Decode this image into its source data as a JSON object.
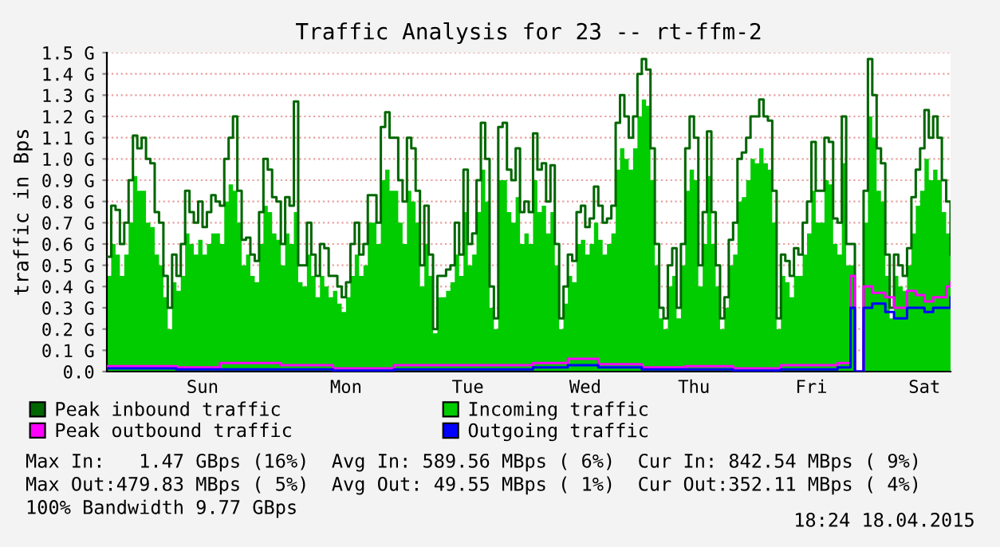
{
  "chart_data": {
    "type": "area",
    "title": "Traffic Analysis for 23 -- rt-ffm-2",
    "ylabel": "traffic in Bps",
    "categories": [
      null,
      null,
      null,
      null,
      null,
      null,
      null,
      null,
      null,
      null,
      null,
      null,
      null,
      null,
      null,
      null,
      null,
      null,
      null,
      null,
      null,
      null,
      "Sun",
      null,
      null,
      null,
      null,
      null,
      null,
      null,
      null,
      null,
      null,
      null,
      null,
      null,
      null,
      null,
      null,
      null,
      null,
      null,
      null,
      null,
      null,
      null,
      null,
      null,
      null,
      null,
      null,
      null,
      null,
      null,
      null,
      "Mon",
      null,
      null,
      null,
      null,
      null,
      null,
      null,
      null,
      null,
      null,
      null,
      null,
      null,
      null,
      null,
      null,
      null,
      null,
      null,
      null,
      null,
      null,
      null,
      null,
      null,
      null,
      null,
      "Tue",
      null,
      null,
      null,
      null,
      null,
      null,
      null,
      null,
      null,
      null,
      null,
      null,
      null,
      null,
      null,
      null,
      null,
      null,
      null,
      null,
      null,
      null,
      null,
      null,
      null,
      null,
      "Wed",
      null,
      null,
      null,
      null,
      null,
      null,
      null,
      null,
      null,
      null,
      null,
      null,
      null,
      null,
      null,
      null,
      null,
      null,
      null,
      null,
      null,
      null,
      null,
      null,
      "Thu",
      null,
      null,
      null,
      null,
      null,
      null,
      null,
      null,
      null,
      null,
      null,
      null,
      null,
      null,
      null,
      null,
      null,
      null,
      null,
      null,
      null,
      null,
      null,
      null,
      null,
      null,
      "Fri",
      null,
      null,
      null,
      null,
      null,
      null,
      null,
      null,
      null,
      null,
      null,
      null,
      null,
      null,
      null,
      null,
      null,
      null,
      null,
      null,
      null,
      null,
      null,
      null,
      null,
      "Sat",
      null,
      null,
      null,
      null,
      null,
      null
    ],
    "series": [
      {
        "name": "Peak inbound traffic",
        "type": "step",
        "color": "#006600",
        "values": [
          0.54,
          0.78,
          0.76,
          0.6,
          0.7,
          0.9,
          1.11,
          1.05,
          1.1,
          1.0,
          0.98,
          0.75,
          0.7,
          0.45,
          0.3,
          0.55,
          0.45,
          0.6,
          0.85,
          0.75,
          0.7,
          0.8,
          0.68,
          0.75,
          0.83,
          0.8,
          0.78,
          1.0,
          1.1,
          1.2,
          0.85,
          0.62,
          0.63,
          0.55,
          0.52,
          0.75,
          1.0,
          0.95,
          0.82,
          0.8,
          0.6,
          0.82,
          0.78,
          1.27,
          0.5,
          0.5,
          0.7,
          0.55,
          0.45,
          0.6,
          0.58,
          0.45,
          0.45,
          0.4,
          0.35,
          0.42,
          0.6,
          0.7,
          0.55,
          0.6,
          0.83,
          0.83,
          0.7,
          1.15,
          1.22,
          1.1,
          1.1,
          0.9,
          0.8,
          1.1,
          1.05,
          0.85,
          0.5,
          0.78,
          0.55,
          0.2,
          0.45,
          0.45,
          0.48,
          0.5,
          0.7,
          0.55,
          0.95,
          0.6,
          0.65,
          0.9,
          1.17,
          1.0,
          0.4,
          0.25,
          1.15,
          1.17,
          0.95,
          0.9,
          1.05,
          0.75,
          0.8,
          0.75,
          1.12,
          0.95,
          0.98,
          0.8,
          0.97,
          0.6,
          0.25,
          0.4,
          0.55,
          0.52,
          0.75,
          0.78,
          0.68,
          0.72,
          0.87,
          0.78,
          0.7,
          0.72,
          0.78,
          1.17,
          1.3,
          1.2,
          1.1,
          1.2,
          1.4,
          1.47,
          1.42,
          1.05,
          0.6,
          0.3,
          0.25,
          0.5,
          0.58,
          0.3,
          0.6,
          1.05,
          1.2,
          1.1,
          0.5,
          0.75,
          1.13,
          0.75,
          0.5,
          0.25,
          0.35,
          0.62,
          0.7,
          1.0,
          1.03,
          1.1,
          1.2,
          1.2,
          1.28,
          1.2,
          1.18,
          0.85,
          0.25,
          0.55,
          0.52,
          0.45,
          0.58,
          0.55,
          0.7,
          0.8,
          1.08,
          0.85,
          0.85,
          1.1,
          1.08,
          0.72,
          0.7,
          1.2,
          0.6,
          0.6,
          0.0,
          0.0,
          0.85,
          1.47,
          1.3,
          1.05,
          0.98,
          0.55,
          0.3,
          0.55,
          0.5,
          0.45,
          0.58,
          0.82,
          0.95,
          1.05,
          1.23,
          1.1,
          1.2,
          1.1,
          0.9,
          0.8,
          0.55
        ]
      },
      {
        "name": "Peak outbound traffic",
        "type": "step",
        "color": "#ff00ff",
        "values": [
          0.025,
          0.025,
          0.025,
          0.025,
          0.025,
          0.025,
          0.025,
          0.025,
          0.025,
          0.025,
          0.025,
          0.025,
          0.025,
          0.025,
          0.025,
          0.025,
          0.02,
          0.02,
          0.02,
          0.02,
          0.02,
          0.02,
          0.02,
          0.02,
          0.02,
          0.02,
          0.04,
          0.04,
          0.04,
          0.04,
          0.04,
          0.04,
          0.04,
          0.04,
          0.04,
          0.04,
          0.04,
          0.04,
          0.04,
          0.04,
          0.03,
          0.03,
          0.03,
          0.03,
          0.03,
          0.03,
          0.03,
          0.03,
          0.03,
          0.03,
          0.03,
          0.03,
          0.015,
          0.015,
          0.015,
          0.015,
          0.015,
          0.015,
          0.015,
          0.015,
          0.015,
          0.015,
          0.015,
          0.015,
          0.015,
          0.015,
          0.03,
          0.03,
          0.03,
          0.03,
          0.03,
          0.03,
          0.03,
          0.03,
          0.03,
          0.03,
          0.03,
          0.03,
          0.03,
          0.03,
          0.03,
          0.03,
          0.03,
          0.03,
          0.03,
          0.03,
          0.03,
          0.03,
          0.03,
          0.03,
          0.03,
          0.03,
          0.03,
          0.03,
          0.03,
          0.03,
          0.03,
          0.03,
          0.04,
          0.04,
          0.04,
          0.04,
          0.04,
          0.04,
          0.04,
          0.04,
          0.06,
          0.06,
          0.06,
          0.06,
          0.06,
          0.06,
          0.06,
          0.035,
          0.035,
          0.035,
          0.035,
          0.035,
          0.035,
          0.035,
          0.035,
          0.035,
          0.035,
          0.02,
          0.02,
          0.02,
          0.02,
          0.02,
          0.02,
          0.02,
          0.02,
          0.02,
          0.02,
          0.025,
          0.025,
          0.025,
          0.025,
          0.025,
          0.025,
          0.025,
          0.025,
          0.025,
          0.025,
          0.025,
          0.015,
          0.015,
          0.015,
          0.015,
          0.015,
          0.015,
          0.015,
          0.015,
          0.015,
          0.015,
          0.015,
          0.03,
          0.03,
          0.03,
          0.03,
          0.03,
          0.03,
          0.03,
          0.03,
          0.03,
          0.03,
          0.03,
          0.03,
          0.03,
          0.04,
          0.04,
          0.04,
          0.45,
          0.0,
          0.0,
          0.4,
          0.4,
          0.37,
          0.37,
          0.37,
          0.35,
          0.35,
          0.3,
          0.3,
          0.3,
          0.38,
          0.38,
          0.36,
          0.36,
          0.33,
          0.33,
          0.35,
          0.35,
          0.35,
          0.4,
          0.42
        ]
      },
      {
        "name": "Incoming traffic",
        "color": "#00cc00",
        "values": [
          0.45,
          0.6,
          0.55,
          0.45,
          0.55,
          0.7,
          0.92,
          0.85,
          0.85,
          0.7,
          0.68,
          0.55,
          0.5,
          0.35,
          0.2,
          0.42,
          0.38,
          0.45,
          0.65,
          0.6,
          0.55,
          0.62,
          0.55,
          0.6,
          0.65,
          0.65,
          0.6,
          0.8,
          0.88,
          0.85,
          0.7,
          0.5,
          0.55,
          0.45,
          0.42,
          0.6,
          0.78,
          0.75,
          0.65,
          0.62,
          0.5,
          0.65,
          0.6,
          0.75,
          0.42,
          0.4,
          0.55,
          0.45,
          0.35,
          0.45,
          0.4,
          0.35,
          0.38,
          0.32,
          0.28,
          0.35,
          0.45,
          0.55,
          0.45,
          0.5,
          0.7,
          0.7,
          0.6,
          0.9,
          0.95,
          0.85,
          0.85,
          0.7,
          0.6,
          0.85,
          0.8,
          0.7,
          0.4,
          0.6,
          0.45,
          0.18,
          0.35,
          0.35,
          0.38,
          0.42,
          0.55,
          0.45,
          0.75,
          0.5,
          0.55,
          0.75,
          0.95,
          0.8,
          0.3,
          0.2,
          0.9,
          0.9,
          0.75,
          0.7,
          0.82,
          0.6,
          0.65,
          0.6,
          0.9,
          0.75,
          0.78,
          0.65,
          0.75,
          0.5,
          0.2,
          0.32,
          0.45,
          0.42,
          0.6,
          0.62,
          0.55,
          0.6,
          0.7,
          0.62,
          0.55,
          0.6,
          0.65,
          0.95,
          1.05,
          1.0,
          0.95,
          1.05,
          1.2,
          1.28,
          1.25,
          0.9,
          0.5,
          0.25,
          0.2,
          0.4,
          0.45,
          0.25,
          0.5,
          0.85,
          0.95,
          0.9,
          0.4,
          0.6,
          0.92,
          0.6,
          0.4,
          0.2,
          0.3,
          0.5,
          0.55,
          0.8,
          0.82,
          0.9,
          1.0,
          0.98,
          1.05,
          0.98,
          0.95,
          0.7,
          0.2,
          0.45,
          0.42,
          0.35,
          0.45,
          0.45,
          0.55,
          0.65,
          0.85,
          0.7,
          0.7,
          0.9,
          0.88,
          0.6,
          0.55,
          0.98,
          0.5,
          0.5,
          0.0,
          0.0,
          0.7,
          1.2,
          1.1,
          0.85,
          0.8,
          0.45,
          0.25,
          0.45,
          0.4,
          0.38,
          0.5,
          0.65,
          0.78,
          0.85,
          1.0,
          0.9,
          0.95,
          0.9,
          0.75,
          0.65,
          0.45
        ]
      },
      {
        "name": "Outgoing traffic",
        "type": "step",
        "color": "#0000ff",
        "values": [
          0.015,
          0.015,
          0.015,
          0.015,
          0.015,
          0.015,
          0.015,
          0.015,
          0.015,
          0.015,
          0.015,
          0.015,
          0.015,
          0.015,
          0.015,
          0.015,
          0.01,
          0.01,
          0.01,
          0.01,
          0.01,
          0.01,
          0.01,
          0.01,
          0.01,
          0.01,
          0.01,
          0.01,
          0.01,
          0.01,
          0.01,
          0.01,
          0.01,
          0.01,
          0.01,
          0.01,
          0.01,
          0.01,
          0.01,
          0.01,
          0.01,
          0.01,
          0.01,
          0.01,
          0.01,
          0.01,
          0.01,
          0.01,
          0.01,
          0.01,
          0.01,
          0.01,
          0.005,
          0.005,
          0.005,
          0.005,
          0.005,
          0.005,
          0.005,
          0.005,
          0.005,
          0.005,
          0.005,
          0.005,
          0.005,
          0.005,
          0.01,
          0.01,
          0.01,
          0.01,
          0.01,
          0.01,
          0.01,
          0.01,
          0.01,
          0.01,
          0.01,
          0.01,
          0.01,
          0.01,
          0.01,
          0.01,
          0.01,
          0.01,
          0.01,
          0.01,
          0.01,
          0.01,
          0.01,
          0.01,
          0.01,
          0.01,
          0.01,
          0.01,
          0.01,
          0.01,
          0.01,
          0.01,
          0.02,
          0.02,
          0.02,
          0.02,
          0.02,
          0.02,
          0.02,
          0.02,
          0.03,
          0.03,
          0.03,
          0.03,
          0.03,
          0.03,
          0.03,
          0.02,
          0.02,
          0.02,
          0.02,
          0.02,
          0.02,
          0.02,
          0.02,
          0.02,
          0.02,
          0.01,
          0.01,
          0.01,
          0.01,
          0.01,
          0.01,
          0.01,
          0.01,
          0.01,
          0.01,
          0.01,
          0.01,
          0.01,
          0.01,
          0.01,
          0.01,
          0.01,
          0.01,
          0.01,
          0.01,
          0.01,
          0.005,
          0.005,
          0.005,
          0.005,
          0.005,
          0.005,
          0.005,
          0.005,
          0.005,
          0.005,
          0.005,
          0.01,
          0.01,
          0.01,
          0.01,
          0.01,
          0.01,
          0.01,
          0.01,
          0.01,
          0.01,
          0.01,
          0.01,
          0.01,
          0.02,
          0.02,
          0.02,
          0.3,
          0.0,
          0.0,
          0.3,
          0.3,
          0.32,
          0.32,
          0.32,
          0.28,
          0.28,
          0.25,
          0.25,
          0.25,
          0.3,
          0.3,
          0.3,
          0.3,
          0.28,
          0.28,
          0.3,
          0.3,
          0.3,
          0.3,
          0.35
        ]
      }
    ],
    "ylim": [
      0,
      1.5
    ],
    "yticks": [
      {
        "value": 0,
        "label": "0.0"
      },
      {
        "value": 0.1,
        "label": "0.1 G"
      },
      {
        "value": 0.2,
        "label": "0.2 G"
      },
      {
        "value": 0.3,
        "label": "0.3 G"
      },
      {
        "value": 0.4,
        "label": "0.4 G"
      },
      {
        "value": 0.5,
        "label": "0.5 G"
      },
      {
        "value": 0.6,
        "label": "0.6 G"
      },
      {
        "value": 0.7,
        "label": "0.7 G"
      },
      {
        "value": 0.8,
        "label": "0.8 G"
      },
      {
        "value": 0.9,
        "label": "0.9 G"
      },
      {
        "value": 1.0,
        "label": "1.0 G"
      },
      {
        "value": 1.1,
        "label": "1.1 G"
      },
      {
        "value": 1.2,
        "label": "1.2 G"
      },
      {
        "value": 1.3,
        "label": "1.3 G"
      },
      {
        "value": 1.4,
        "label": "1.4 G"
      },
      {
        "value": 1.5,
        "label": "1.5 G"
      }
    ],
    "grid": "y",
    "legend": "bottom",
    "marker": "none",
    "line_style": "solid",
    "annotations": [
      "Max In:   1.47 GBps (16%)  Avg In: 589.56 MBps ( 6%)  Cur In: 842.54 MBps ( 9%)",
      "Max Out:479.83 MBps ( 5%)  Avg Out: 49.55 MBps ( 1%)  Cur Out:352.11 MBps ( 4%)",
      "100% Bandwidth 9.77 GBps",
      "18:24 18.04.2015"
    ]
  }
}
